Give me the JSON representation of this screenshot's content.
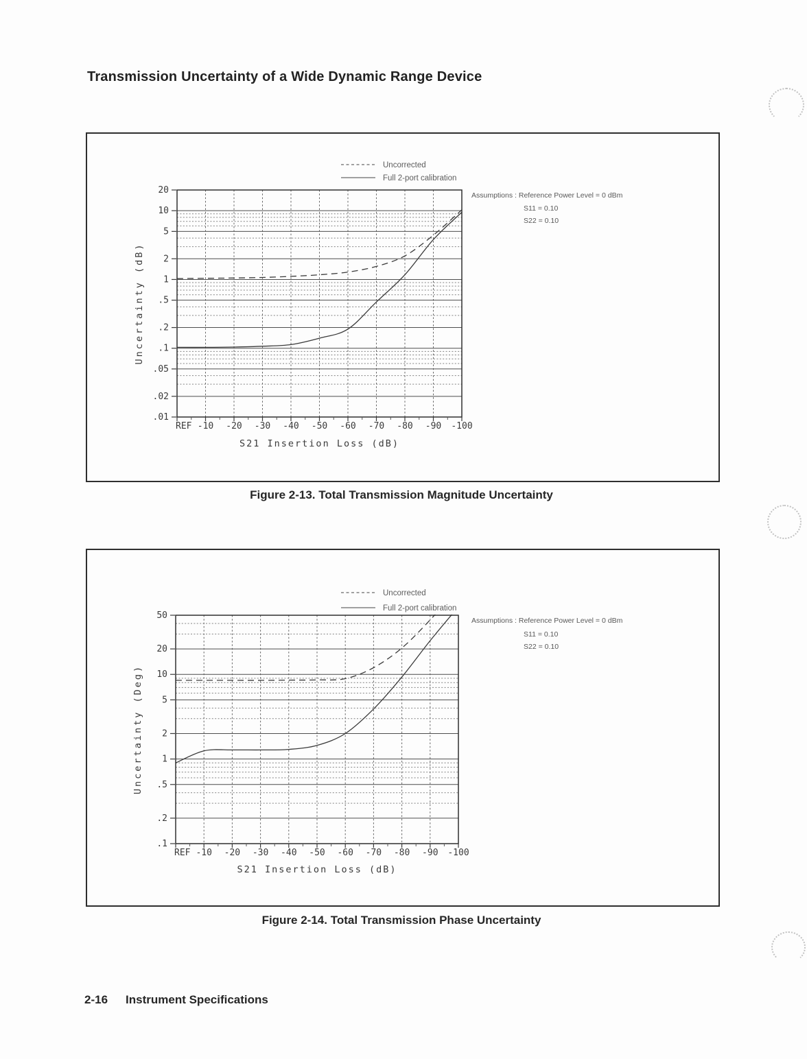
{
  "page": {
    "title": "Transmission Uncertainty of a Wide Dynamic Range Device",
    "footer": {
      "page_number": "2-16",
      "label": "Instrument Specifications"
    }
  },
  "figures": [
    {
      "caption": "Figure 2-13. Total Transmission Magnitude Uncertainty"
    },
    {
      "caption": "Figure 2-14. Total Transmission Phase Uncertainty"
    }
  ],
  "chart_data": [
    {
      "type": "line",
      "title": "Total Transmission Magnitude Uncertainty",
      "xlabel": "S21 Insertion Loss (dB)",
      "ylabel": "Uncertainty (dB)",
      "x_ticks": [
        "REF",
        "-10",
        "-20",
        "-30",
        "-40",
        "-50",
        "-60",
        "-70",
        "-80",
        "-90",
        "-100"
      ],
      "x_values": [
        0,
        -10,
        -20,
        -30,
        -40,
        -50,
        -60,
        -70,
        -80,
        -90,
        -100
      ],
      "y_scale": "log",
      "ylim": [
        0.01,
        20
      ],
      "y_ticks": [
        20,
        10,
        5,
        2,
        1,
        0.5,
        0.2,
        0.1,
        0.05,
        0.02,
        0.01
      ],
      "y_tick_labels": [
        "20",
        "10",
        "5",
        "2",
        "1",
        ".5",
        ".2",
        ".1",
        ".05",
        ".02",
        ".01"
      ],
      "grid": "major solid + log minors (3,4,6,7,8,9) dotted, verticals every 10 dB",
      "legend_position": "above plot, centered",
      "legend": [
        {
          "label": "Uncorrected",
          "style": "dashed"
        },
        {
          "label": "Full 2-port calibration",
          "style": "solid"
        }
      ],
      "annotations": [
        "Assumptions : Reference Power Level = 0 dBm",
        "S11 = 0.10",
        "S22 = 0.10"
      ],
      "series": [
        {
          "name": "Uncorrected",
          "style": "dashed",
          "values": [
            1.03,
            1.04,
            1.05,
            1.07,
            1.11,
            1.17,
            1.28,
            1.55,
            2.2,
            4.4,
            10.3
          ]
        },
        {
          "name": "Full 2-port calibration",
          "style": "solid",
          "values": [
            0.103,
            0.103,
            0.104,
            0.107,
            0.113,
            0.14,
            0.19,
            0.47,
            1.17,
            3.8,
            9.5
          ]
        }
      ]
    },
    {
      "type": "line",
      "title": "Total Transmission Phase Uncertainty",
      "xlabel": "S21 Insertion Loss (dB)",
      "ylabel": "Uncertainty (Deg)",
      "x_ticks": [
        "REF",
        "-10",
        "-20",
        "-30",
        "-40",
        "-50",
        "-60",
        "-70",
        "-80",
        "-90",
        "-100"
      ],
      "x_values": [
        0,
        -10,
        -20,
        -30,
        -40,
        -50,
        -60,
        -70,
        -80,
        -90,
        -100
      ],
      "y_scale": "log",
      "ylim": [
        0.1,
        50
      ],
      "y_ticks": [
        50,
        20,
        10,
        5,
        2,
        1,
        0.5,
        0.2,
        0.1
      ],
      "y_tick_labels": [
        "50",
        "20",
        "10",
        "5",
        "2",
        "1",
        ".5",
        ".2",
        ".1"
      ],
      "grid": "major solid + log minors (3,4,6,7,8,9) dotted, verticals every 10 dB",
      "legend_position": "above plot, centered",
      "legend": [
        {
          "label": "Uncorrected",
          "style": "dashed"
        },
        {
          "label": "Full 2-port calibration",
          "style": "solid"
        }
      ],
      "annotations": [
        "Assumptions : Reference Power Level = 0 dBm",
        "S11 = 0.10",
        "S22 = 0.10"
      ],
      "series": [
        {
          "name": "Uncorrected",
          "style": "dashed",
          "values": [
            8.5,
            8.5,
            8.5,
            8.5,
            8.55,
            8.6,
            8.9,
            12,
            20.5,
            44,
            105
          ]
        },
        {
          "name": "Full 2-port calibration",
          "style": "solid",
          "values": [
            0.9,
            1.25,
            1.28,
            1.28,
            1.3,
            1.45,
            2.0,
            3.9,
            9.3,
            25,
            63
          ]
        }
      ]
    }
  ]
}
